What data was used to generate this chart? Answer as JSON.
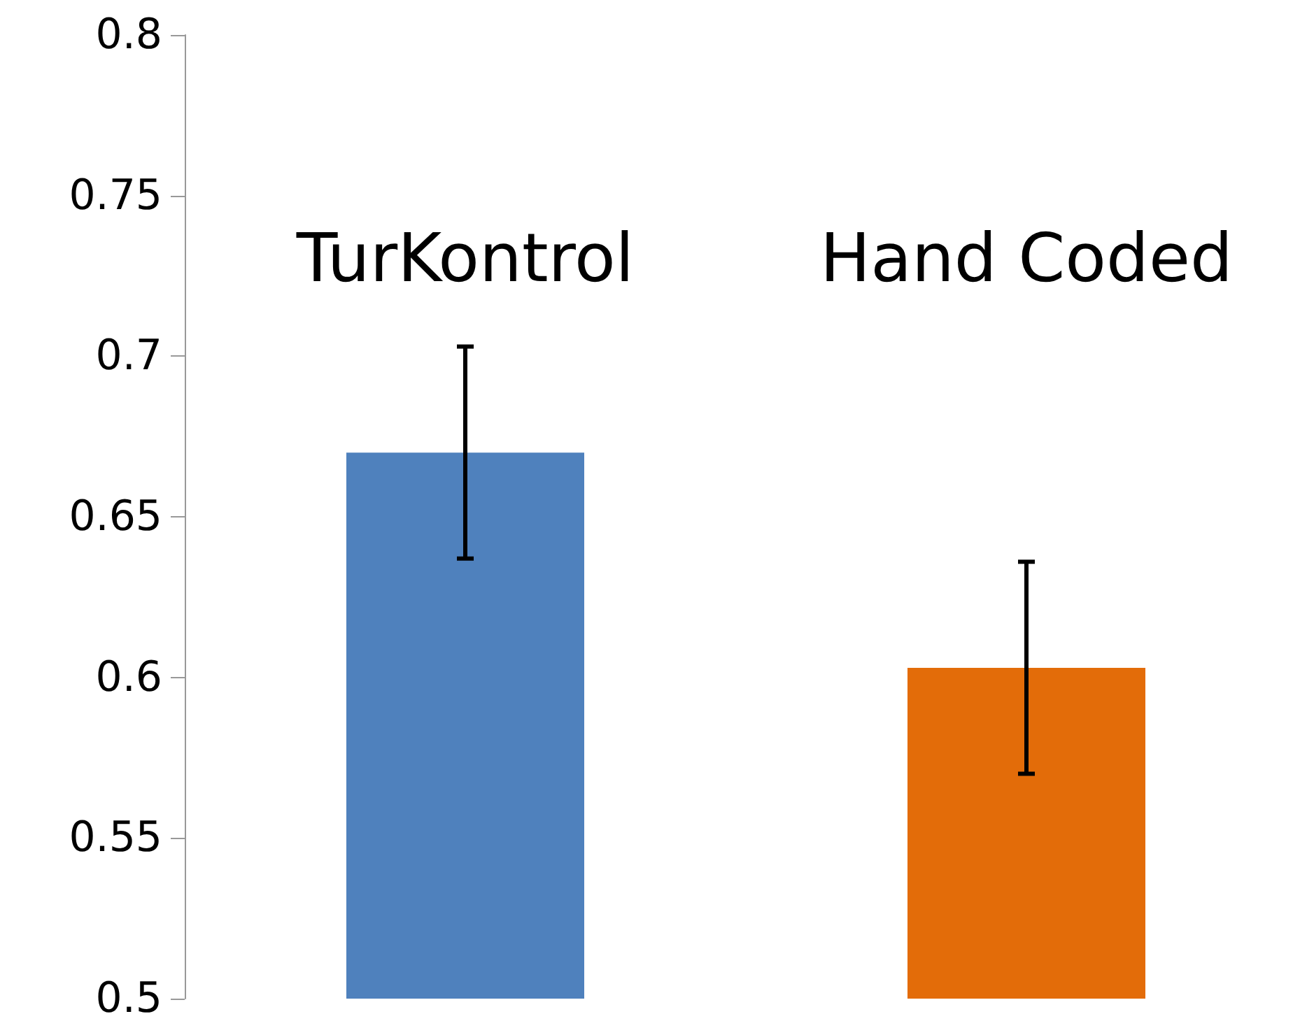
{
  "chart_data": {
    "type": "bar",
    "categories": [
      "TurKontrol",
      "Hand Coded"
    ],
    "values": [
      0.67,
      0.603
    ],
    "colors": [
      "#4f81bd",
      "#e36c09"
    ],
    "errors": [
      0.033,
      0.033
    ],
    "ylim": [
      0.5,
      0.8
    ],
    "yticks": [
      0.5,
      0.55,
      0.6,
      0.65,
      0.7,
      0.75,
      0.8
    ],
    "grid": false
  }
}
